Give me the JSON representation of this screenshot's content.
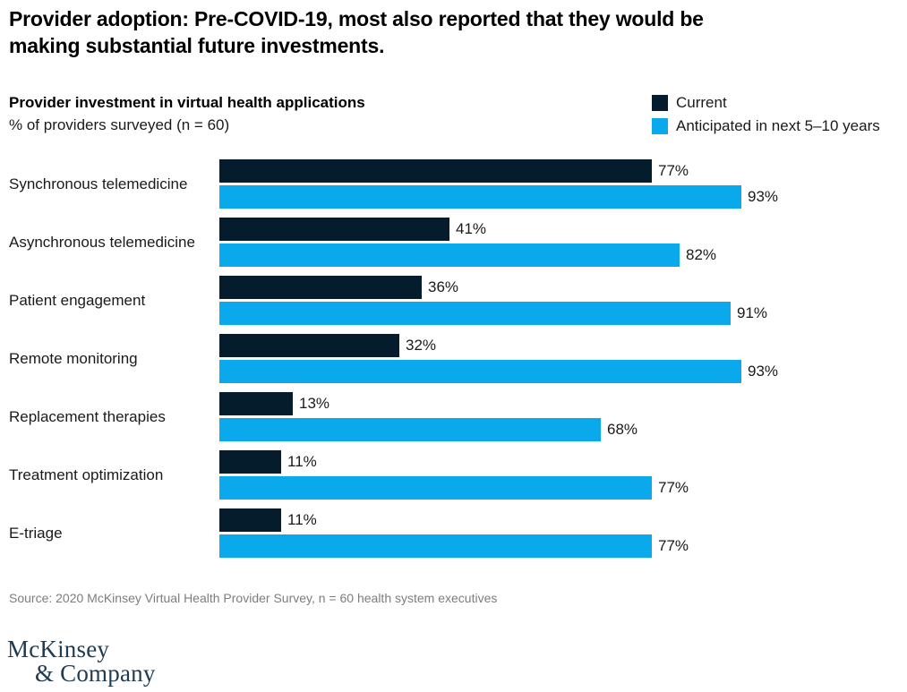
{
  "header": {
    "title_line1": "Provider adoption: Pre-COVID-19, most also reported that they would be",
    "title_line2": "making substantial future investments."
  },
  "chart": {
    "title": "Provider investment in virtual health applications",
    "subtitle": "% of providers surveyed (n = 60)"
  },
  "legend": {
    "position": "top-right",
    "items": [
      {
        "label": "Current",
        "color": "#051c2c"
      },
      {
        "label": "Anticipated in next 5–10 years",
        "color": "#0aa9ec"
      }
    ]
  },
  "chart_data": {
    "type": "bar",
    "orientation": "horizontal",
    "title": "Provider investment in virtual health applications",
    "subtitle": "% of providers surveyed (n = 60)",
    "categories": [
      "Synchronous telemedicine",
      "Asynchronous telemedicine",
      "Patient engagement",
      "Remote monitoring",
      "Replacement therapies",
      "Treatment optimization",
      "E-triage"
    ],
    "series": [
      {
        "name": "Current",
        "color": "#051c2c",
        "values": [
          77,
          41,
          36,
          32,
          13,
          11,
          11
        ]
      },
      {
        "name": "Anticipated in next 5–10 years",
        "color": "#0aa9ec",
        "values": [
          93,
          82,
          91,
          93,
          68,
          77,
          77
        ]
      }
    ],
    "value_suffix": "%",
    "xlim": [
      0,
      100
    ],
    "grid": false,
    "data_labels": true
  },
  "colors": {
    "current": "#051c2c",
    "anticipated": "#0aa9ec",
    "logo_navy": "#1f3b53",
    "source_gray": "#7d7d7d"
  },
  "source": "Source: 2020 McKinsey Virtual Health Provider Survey, n = 60 health system executives",
  "logo": {
    "line1": "McKinsey",
    "line2": "& Company"
  }
}
